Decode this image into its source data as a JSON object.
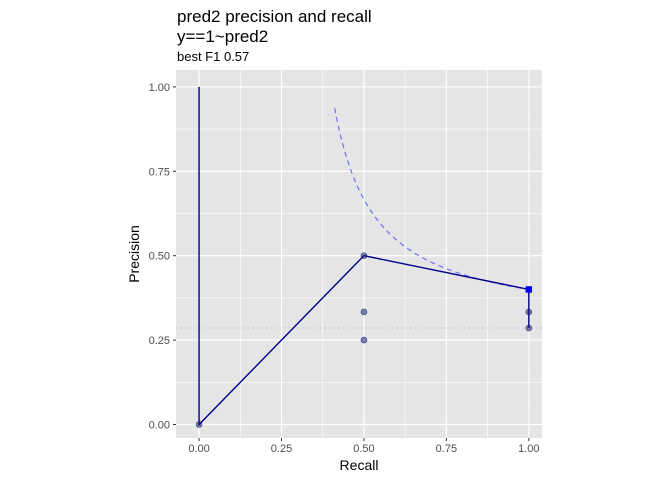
{
  "chart_data": {
    "type": "line",
    "title": "pred2 precision and recall",
    "subtitle_line1": "y==1~pred2",
    "subtitle_line2": "best F1 0.57",
    "xlabel": "Recall",
    "ylabel": "Precision",
    "xlim": [
      -0.07,
      1.04
    ],
    "ylim": [
      -0.04,
      1.05
    ],
    "x_ticks": [
      0.0,
      0.25,
      0.5,
      0.75,
      1.0
    ],
    "x_tick_labels": [
      "0.00",
      "0.25",
      "0.50",
      "0.75",
      "1.00"
    ],
    "y_ticks": [
      0.0,
      0.25,
      0.5,
      0.75,
      1.0
    ],
    "y_tick_labels": [
      "0.00",
      "0.25",
      "0.50",
      "0.75",
      "1.00"
    ],
    "grid": true,
    "series": [
      {
        "kind": "path",
        "points": [
          [
            0.0,
            1.0
          ],
          [
            0.0,
            0.0
          ],
          [
            0.5,
            0.5
          ],
          [
            1.0,
            0.4
          ],
          [
            1.0,
            0.2857
          ]
        ]
      },
      {
        "kind": "points",
        "points": [
          [
            0.0,
            0.0
          ],
          [
            0.5,
            0.5
          ],
          [
            0.5,
            0.3333
          ],
          [
            0.5,
            0.25
          ],
          [
            1.0,
            0.4
          ],
          [
            1.0,
            0.3333
          ],
          [
            1.0,
            0.2857
          ]
        ]
      },
      {
        "kind": "iso-f1-curve",
        "f1": 0.5714,
        "x_range": [
          0.411,
          1.0
        ]
      }
    ],
    "best_point": [
      1.0,
      0.4
    ],
    "reference_lines": {
      "precision_baseline": 0.2857,
      "ideal_x": 1.0,
      "ideal_y": 1.0
    },
    "colors": {
      "panel": "#e5e5e5",
      "grid": "#ffffff",
      "path": "#00008b",
      "points": "#191970",
      "curve": "#7070ff",
      "best": "#0000ff",
      "reference": "#bdbdbd"
    }
  }
}
